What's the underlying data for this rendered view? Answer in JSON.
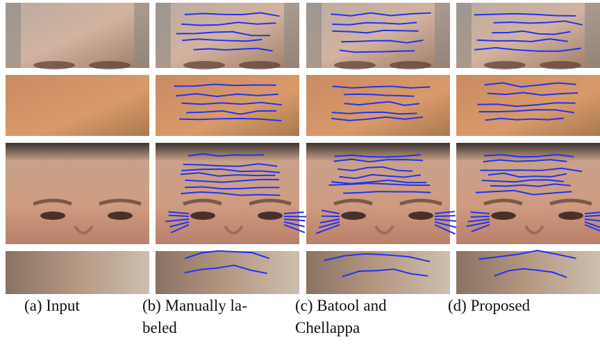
{
  "figure": {
    "captions": [
      {
        "lines": [
          "(a) Input"
        ]
      },
      {
        "lines": [
          "(b) Manually la-",
          "beled"
        ]
      },
      {
        "lines": [
          "(c) Batool and",
          "Chellappa"
        ]
      },
      {
        "lines": [
          "(d) Proposed"
        ]
      }
    ]
  }
}
